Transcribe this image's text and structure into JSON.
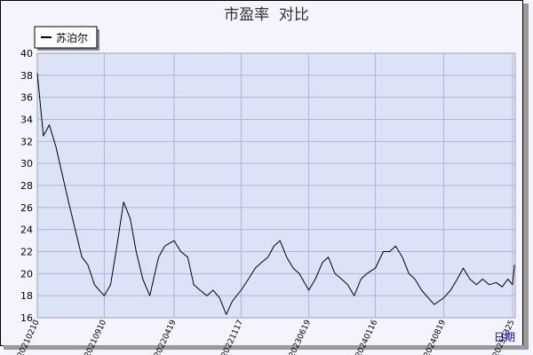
{
  "chart_data": {
    "type": "line",
    "title": "市盈率  对比",
    "xlabel": "日期",
    "ylabel": "",
    "ylim": [
      16,
      40
    ],
    "yticks": [
      16,
      18,
      20,
      22,
      24,
      26,
      28,
      30,
      32,
      34,
      36,
      38,
      40
    ],
    "xtick_labels": [
      "20210210",
      "20210910",
      "20220419",
      "20221117",
      "20230619",
      "20240116",
      "20240819",
      "20250325"
    ],
    "grid": true,
    "legend_position": "top-left",
    "series": [
      {
        "name": "苏泊尔",
        "color": "#000000",
        "x": [
          "20210210",
          "20210301",
          "20210320",
          "20210410",
          "20210430",
          "20210520",
          "20210610",
          "20210701",
          "20210720",
          "20210810",
          "20210825",
          "20210910",
          "20210930",
          "20211020",
          "20211110",
          "20211201",
          "20211220",
          "20220110",
          "20220201",
          "20220301",
          "20220320",
          "20220419",
          "20220510",
          "20220601",
          "20220620",
          "20220710",
          "20220801",
          "20220820",
          "20220910",
          "20221001",
          "20221020",
          "20221117",
          "20221210",
          "20230101",
          "20230120",
          "20230210",
          "20230301",
          "20230320",
          "20230410",
          "20230501",
          "20230520",
          "20230619",
          "20230710",
          "20230801",
          "20230820",
          "20230910",
          "20231001",
          "20231020",
          "20231110",
          "20231201",
          "20231220",
          "20240116",
          "20240210",
          "20240301",
          "20240320",
          "20240410",
          "20240501",
          "20240520",
          "20240610",
          "20240701",
          "20240720",
          "20240819",
          "20240910",
          "20241001",
          "20241020",
          "20241110",
          "20241201",
          "20241220",
          "20250110",
          "20250201",
          "20250220",
          "20250310",
          "20250325",
          "20250331"
        ],
        "y": [
          38.2,
          32.5,
          33.5,
          31.5,
          29.0,
          26.5,
          24.0,
          21.5,
          20.8,
          19.0,
          18.5,
          18.0,
          19.0,
          22.5,
          26.5,
          25.0,
          22.0,
          19.5,
          18.0,
          21.5,
          22.5,
          23.0,
          22.0,
          21.5,
          19.0,
          18.5,
          18.0,
          18.5,
          17.8,
          16.3,
          17.5,
          18.5,
          19.5,
          20.5,
          21.0,
          21.5,
          22.5,
          23.0,
          21.5,
          20.5,
          20.0,
          18.5,
          19.5,
          21.0,
          21.5,
          20.0,
          19.5,
          19.0,
          18.0,
          19.5,
          20.0,
          20.5,
          22.0,
          22.0,
          22.5,
          21.5,
          20.0,
          19.5,
          18.5,
          17.8,
          17.2,
          17.8,
          18.5,
          19.5,
          20.5,
          19.5,
          19.0,
          19.5,
          19.0,
          19.2,
          18.8,
          19.5,
          19.0,
          20.8
        ]
      }
    ]
  }
}
